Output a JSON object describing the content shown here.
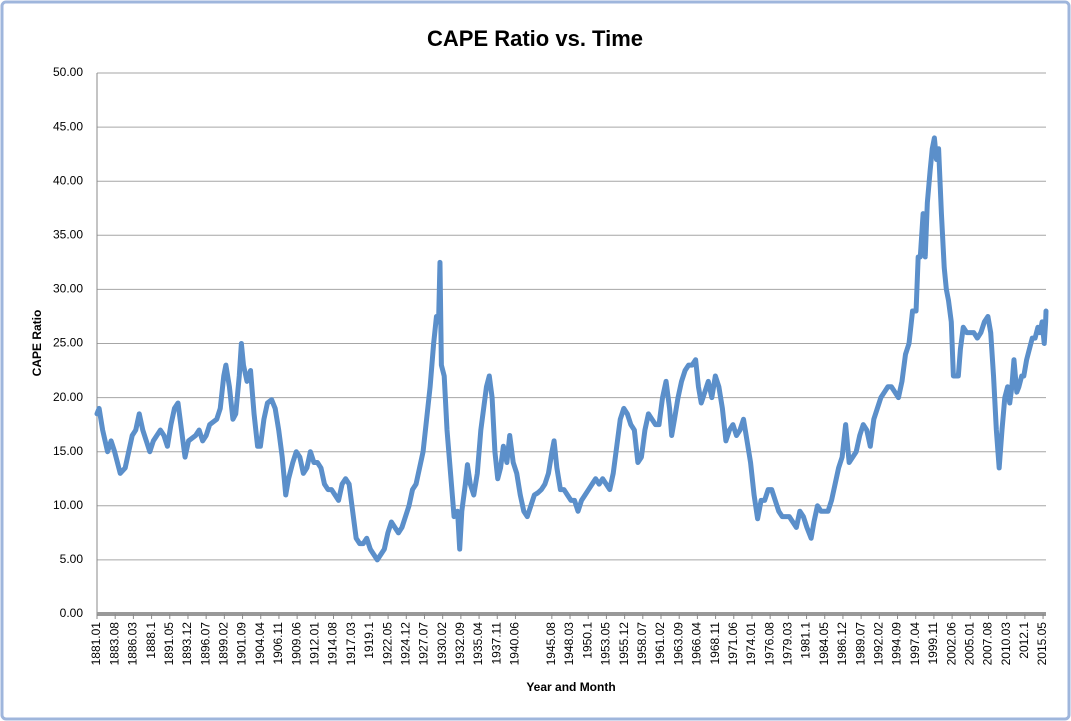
{
  "chart_data": {
    "type": "line",
    "title": "CAPE Ratio vs. Time",
    "x_label": "Year and Month",
    "y_label": "CAPE Ratio",
    "xlim": [
      1881,
      2015.75
    ],
    "ylim": [
      0,
      50
    ],
    "grid": true,
    "yticks": [
      {
        "value": 0,
        "label": "0.00"
      },
      {
        "value": 5,
        "label": "5.00"
      },
      {
        "value": 10,
        "label": "10.00"
      },
      {
        "value": 15,
        "label": "15.00"
      },
      {
        "value": 20,
        "label": "20.00"
      },
      {
        "value": 25,
        "label": "25.00"
      },
      {
        "value": 30,
        "label": "30.00"
      },
      {
        "value": 35,
        "label": "35.00"
      },
      {
        "value": 40,
        "label": "40.00"
      },
      {
        "value": 45,
        "label": "45.00"
      },
      {
        "value": 50,
        "label": "50.00"
      }
    ],
    "xticks": [
      {
        "value": 1881.0,
        "label": "1881.01"
      },
      {
        "value": 1883.583,
        "label": "1883.08"
      },
      {
        "value": 1886.167,
        "label": "1886.03"
      },
      {
        "value": 1888.75,
        "label": "1888.1"
      },
      {
        "value": 1891.333,
        "label": "1891.05"
      },
      {
        "value": 1893.917,
        "label": "1893.12"
      },
      {
        "value": 1896.5,
        "label": "1896.07"
      },
      {
        "value": 1899.083,
        "label": "1899.02"
      },
      {
        "value": 1901.667,
        "label": "1901.09"
      },
      {
        "value": 1904.25,
        "label": "1904.04"
      },
      {
        "value": 1906.833,
        "label": "1906.11"
      },
      {
        "value": 1909.417,
        "label": "1909.06"
      },
      {
        "value": 1912.0,
        "label": "1912.01"
      },
      {
        "value": 1914.583,
        "label": "1914.08"
      },
      {
        "value": 1917.167,
        "label": "1917.03"
      },
      {
        "value": 1919.75,
        "label": "1919.1"
      },
      {
        "value": 1922.333,
        "label": "1922.05"
      },
      {
        "value": 1924.917,
        "label": "1924.12"
      },
      {
        "value": 1927.5,
        "label": "1927.07"
      },
      {
        "value": 1930.083,
        "label": "1930.02"
      },
      {
        "value": 1932.667,
        "label": "1932.09"
      },
      {
        "value": 1935.25,
        "label": "1935.04"
      },
      {
        "value": 1937.833,
        "label": "1937.11"
      },
      {
        "value": 1940.417,
        "label": "1940.06"
      },
      {
        "value": 1945.583,
        "label": "1945.08"
      },
      {
        "value": 1948.167,
        "label": "1948.03"
      },
      {
        "value": 1950.75,
        "label": "1950.1"
      },
      {
        "value": 1953.333,
        "label": "1953.05"
      },
      {
        "value": 1955.917,
        "label": "1955.12"
      },
      {
        "value": 1958.5,
        "label": "1958.07"
      },
      {
        "value": 1961.083,
        "label": "1961.02"
      },
      {
        "value": 1963.667,
        "label": "1963.09"
      },
      {
        "value": 1966.25,
        "label": "1966.04"
      },
      {
        "value": 1968.833,
        "label": "1968.11"
      },
      {
        "value": 1971.417,
        "label": "1971.06"
      },
      {
        "value": 1974.0,
        "label": "1974.01"
      },
      {
        "value": 1976.583,
        "label": "1976.08"
      },
      {
        "value": 1979.167,
        "label": "1979.03"
      },
      {
        "value": 1981.75,
        "label": "1981.1"
      },
      {
        "value": 1984.333,
        "label": "1984.05"
      },
      {
        "value": 1986.917,
        "label": "1986.12"
      },
      {
        "value": 1989.5,
        "label": "1989.07"
      },
      {
        "value": 1992.083,
        "label": "1992.02"
      },
      {
        "value": 1994.667,
        "label": "1994.09"
      },
      {
        "value": 1997.25,
        "label": "1997.04"
      },
      {
        "value": 1999.833,
        "label": "1999.11"
      },
      {
        "value": 2002.417,
        "label": "2002.06"
      },
      {
        "value": 2005.0,
        "label": "2005.01"
      },
      {
        "value": 2007.583,
        "label": "2007.08"
      },
      {
        "value": 2010.167,
        "label": "2010.03"
      },
      {
        "value": 2012.75,
        "label": "2012.1"
      },
      {
        "value": 2015.333,
        "label": "2015.05"
      }
    ],
    "x": [
      1881.0,
      1881.3,
      1881.8,
      1882.5,
      1883,
      1883.5,
      1884.3,
      1885,
      1885.5,
      1886,
      1886.5,
      1887,
      1887.5,
      1888,
      1888.5,
      1889,
      1890,
      1890.5,
      1891,
      1891.5,
      1892,
      1892.5,
      1893,
      1893.5,
      1894,
      1895,
      1895.5,
      1896,
      1896.5,
      1897,
      1898,
      1898.5,
      1899,
      1899.3,
      1899.8,
      1900.3,
      1900.7,
      1901.2,
      1901.5,
      1901.8,
      1902.3,
      1902.8,
      1903.3,
      1903.8,
      1904.2,
      1904.7,
      1905.2,
      1905.8,
      1906.3,
      1906.8,
      1907.3,
      1907.8,
      1908.2,
      1908.8,
      1909.3,
      1909.8,
      1910.3,
      1910.8,
      1911.3,
      1911.8,
      1912.3,
      1912.8,
      1913.3,
      1913.8,
      1914.3,
      1914.8,
      1915.3,
      1915.8,
      1916.3,
      1916.8,
      1917.3,
      1917.8,
      1918.3,
      1918.8,
      1919.3,
      1919.8,
      1920.3,
      1920.8,
      1921.3,
      1921.8,
      1922.3,
      1922.8,
      1923.3,
      1923.8,
      1924.3,
      1924.8,
      1925.3,
      1925.8,
      1926.3,
      1926.8,
      1927.3,
      1927.8,
      1928.3,
      1928.8,
      1929.2,
      1929.5,
      1929.7,
      1929.9,
      1930.3,
      1930.7,
      1931.2,
      1931.7,
      1932.2,
      1932.5,
      1932.8,
      1933.3,
      1933.6,
      1934,
      1934.5,
      1935,
      1935.5,
      1935.9,
      1936.3,
      1936.7,
      1937.1,
      1937.5,
      1937.9,
      1938.3,
      1938.7,
      1939.2,
      1939.6,
      1940.1,
      1940.6,
      1941.1,
      1941.6,
      1942.1,
      1942.6,
      1943.1,
      1943.6,
      1944.1,
      1944.6,
      1945.1,
      1945.6,
      1945.9,
      1946.3,
      1946.8,
      1947.3,
      1947.8,
      1948.3,
      1948.8,
      1949.3,
      1949.8,
      1950.3,
      1950.8,
      1951.3,
      1951.8,
      1952.3,
      1952.8,
      1953.3,
      1953.8,
      1954.3,
      1954.8,
      1955.3,
      1955.8,
      1956.3,
      1956.8,
      1957.3,
      1957.8,
      1958.3,
      1958.8,
      1959.3,
      1959.8,
      1960.3,
      1960.8,
      1961.3,
      1961.8,
      1962.3,
      1962.6,
      1963,
      1963.5,
      1964,
      1964.5,
      1965,
      1965.5,
      1966,
      1966.4,
      1966.8,
      1967.3,
      1967.8,
      1968.3,
      1968.8,
      1969.3,
      1969.8,
      1970.3,
      1970.8,
      1971.3,
      1971.8,
      1972.3,
      1972.8,
      1973.3,
      1973.8,
      1974.3,
      1974.8,
      1975.3,
      1975.8,
      1976.3,
      1976.8,
      1977.3,
      1977.8,
      1978.3,
      1978.8,
      1979.3,
      1979.8,
      1980.3,
      1980.8,
      1981.3,
      1981.8,
      1982.4,
      1982.8,
      1983.3,
      1983.8,
      1984.3,
      1984.8,
      1985.3,
      1985.8,
      1986.3,
      1986.8,
      1987.3,
      1987.8,
      1988.3,
      1988.8,
      1989.3,
      1989.8,
      1990.3,
      1990.8,
      1991.3,
      1991.8,
      1992.3,
      1992.8,
      1993.3,
      1993.8,
      1994.3,
      1994.8,
      1995.3,
      1995.8,
      1996.3,
      1996.8,
      1997.3,
      1997.6,
      1997.9,
      1998.3,
      1998.6,
      1998.9,
      1999.3,
      1999.6,
      1999.9,
      2000.2,
      2000.5,
      2000.9,
      2001.3,
      2001.6,
      2001.9,
      2002.3,
      2002.6,
      2002.9,
      2003.3,
      2003.6,
      2004,
      2004.5,
      2005,
      2005.5,
      2006,
      2006.5,
      2007,
      2007.5,
      2007.9,
      2008.3,
      2008.7,
      2009.1,
      2009.5,
      2009.9,
      2010.3,
      2010.6,
      2010.9,
      2011.2,
      2011.6,
      2011.9,
      2012.3,
      2012.6,
      2013,
      2013.4,
      2013.8,
      2014.2,
      2014.6,
      2014.9,
      2015.2,
      2015.5,
      2015.7,
      2015.75
    ],
    "series": [
      {
        "name": "CAPE Ratio",
        "color": "#5b8fca",
        "values": [
          18.5,
          19,
          17,
          15,
          16,
          15,
          13,
          13.5,
          15,
          16.5,
          17,
          18.5,
          17,
          16,
          15,
          16,
          17,
          16.5,
          15.5,
          17.5,
          19,
          19.5,
          17,
          14.5,
          16,
          16.5,
          17,
          16,
          16.5,
          17.5,
          18,
          19,
          22,
          23,
          21,
          18,
          18.5,
          22,
          25,
          23,
          21.5,
          22.5,
          18.5,
          15.5,
          15.5,
          18,
          19.5,
          19.8,
          19,
          17,
          14.5,
          11,
          12.5,
          14,
          15,
          14.5,
          13,
          13.5,
          15,
          14,
          14,
          13.5,
          12,
          11.5,
          11.5,
          11,
          10.5,
          12,
          12.5,
          12,
          9.5,
          7,
          6.5,
          6.5,
          7,
          6,
          5.5,
          5,
          5.5,
          6,
          7.5,
          8.5,
          8,
          7.5,
          8,
          9,
          10,
          11.5,
          12,
          13.5,
          15,
          18,
          21,
          25,
          27.5,
          27,
          32.5,
          23,
          22,
          17,
          13,
          9,
          9.5,
          6,
          9.5,
          12,
          13.8,
          12,
          11,
          13,
          17,
          19,
          21,
          22,
          20,
          15,
          12.5,
          13.5,
          15.5,
          14,
          16.5,
          14,
          13,
          11,
          9.5,
          9,
          10,
          11,
          11.2,
          11.5,
          12,
          13,
          15,
          16,
          13.5,
          11.5,
          11.5,
          11,
          10.5,
          10.5,
          9.5,
          10.5,
          11,
          11.5,
          12,
          12.5,
          12,
          12.5,
          12,
          11.5,
          13,
          15.5,
          18,
          19,
          18.5,
          17.5,
          17,
          14,
          14.5,
          17,
          18.5,
          18,
          17.5,
          17.5,
          20,
          21.5,
          19,
          16.5,
          18,
          20,
          21.5,
          22.5,
          23,
          23,
          23.5,
          21,
          19.5,
          20.5,
          21.5,
          20,
          22,
          21,
          19,
          16,
          17,
          17.5,
          16.5,
          17,
          18,
          16,
          14,
          11,
          8.8,
          10.5,
          10.5,
          11.5,
          11.5,
          10.5,
          9.5,
          9,
          9,
          9,
          8.5,
          8,
          9.5,
          9,
          8,
          7,
          8.5,
          10,
          9.5,
          9.5,
          9.5,
          10.5,
          12,
          13.5,
          14.5,
          17.5,
          14,
          14.5,
          15,
          16.5,
          17.5,
          17,
          15.5,
          18,
          19,
          20,
          20.5,
          21,
          21,
          20.5,
          20,
          21.5,
          24,
          25,
          28,
          28,
          33,
          33,
          37,
          33,
          38,
          41,
          43,
          44,
          42,
          43,
          37,
          32,
          30,
          29,
          27,
          22,
          22,
          22,
          24.5,
          26.5,
          26,
          26,
          26,
          25.5,
          26,
          27,
          27.5,
          26,
          22,
          17,
          13.5,
          17,
          20,
          21,
          19.5,
          21,
          23.5,
          20.5,
          21,
          22,
          22,
          23.5,
          24.5,
          25.5,
          25.5,
          26.5,
          26,
          27,
          25,
          27,
          28
        ]
      }
    ]
  }
}
